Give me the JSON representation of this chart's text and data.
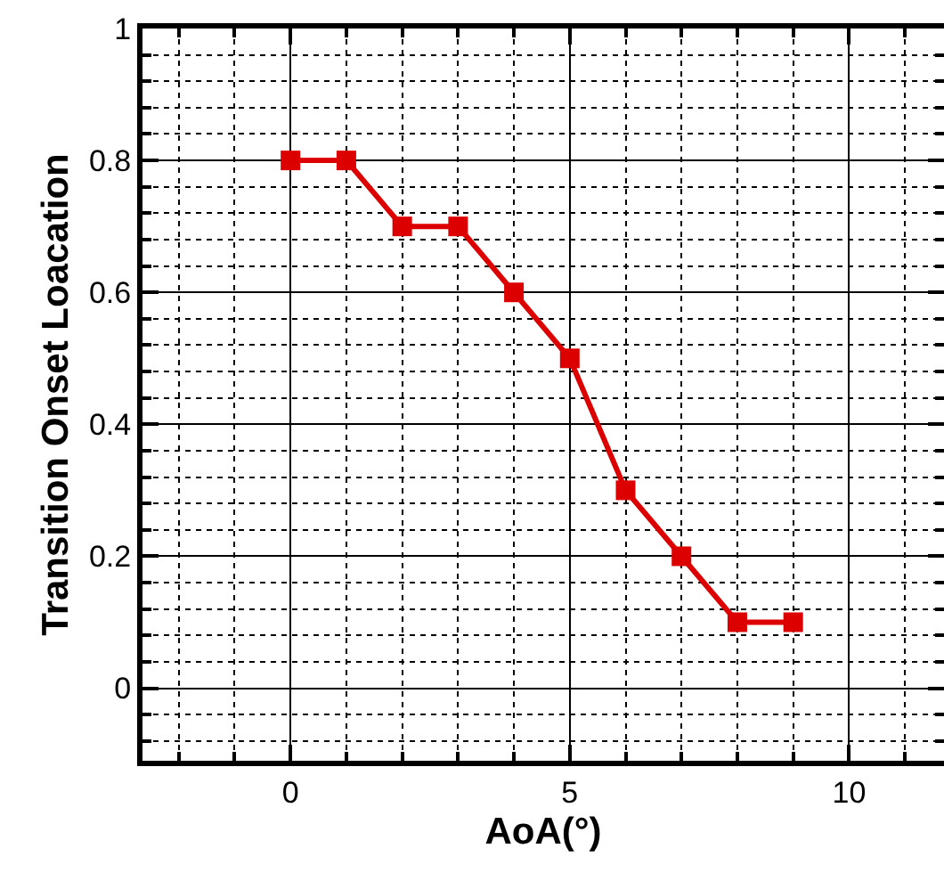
{
  "chart_data": {
    "type": "line",
    "xlabel": "AoA(°)",
    "ylabel": "Transition Onset Loacation",
    "x": [
      0,
      1,
      2,
      3,
      4,
      5,
      6,
      7,
      8,
      9
    ],
    "series": [
      {
        "color": "#dd0000",
        "values": [
          0.8,
          0.8,
          0.7,
          0.7,
          0.6,
          0.5,
          0.3,
          0.2,
          0.1,
          0.1
        ]
      }
    ],
    "marker": "square",
    "line_style": "solid",
    "grid": true,
    "xlim": [
      -2.65,
      11.7
    ],
    "xticks": [
      0,
      5,
      10,
      {
        "value": -2,
        "label": null
      },
      {
        "value": -1,
        "label": null
      },
      {
        "value": 1,
        "label": null
      },
      {
        "value": 2,
        "label": null
      },
      {
        "value": 3,
        "label": null
      },
      {
        "value": 4,
        "label": null
      },
      {
        "value": 6,
        "label": null
      },
      {
        "value": 7,
        "label": null
      },
      {
        "value": 8,
        "label": null
      },
      {
        "value": 9,
        "label": null
      },
      {
        "value": 11,
        "label": null
      }
    ],
    "ylim": [
      -0.11,
      1
    ],
    "yticks": [
      0,
      0.2,
      0.4,
      0.6,
      0.8,
      1,
      {
        "value": -0.08,
        "label": null
      },
      {
        "value": -0.04,
        "label": null
      },
      {
        "value": 0.04,
        "label": null
      },
      {
        "value": 0.08,
        "label": null
      },
      {
        "value": 0.12,
        "label": null
      },
      {
        "value": 0.16,
        "label": null
      },
      {
        "value": 0.24,
        "label": null
      },
      {
        "value": 0.28,
        "label": null
      },
      {
        "value": 0.32,
        "label": null
      },
      {
        "value": 0.36,
        "label": null
      },
      {
        "value": 0.44,
        "label": null
      },
      {
        "value": 0.48,
        "label": null
      },
      {
        "value": 0.52,
        "label": null
      },
      {
        "value": 0.56,
        "label": null
      },
      {
        "value": 0.64,
        "label": null
      },
      {
        "value": 0.68,
        "label": null
      },
      {
        "value": 0.72,
        "label": null
      },
      {
        "value": 0.76,
        "label": null
      },
      {
        "value": 0.84,
        "label": null
      },
      {
        "value": 0.88,
        "label": null
      },
      {
        "value": 0.92,
        "label": null
      },
      {
        "value": 0.96,
        "label": null
      }
    ]
  }
}
